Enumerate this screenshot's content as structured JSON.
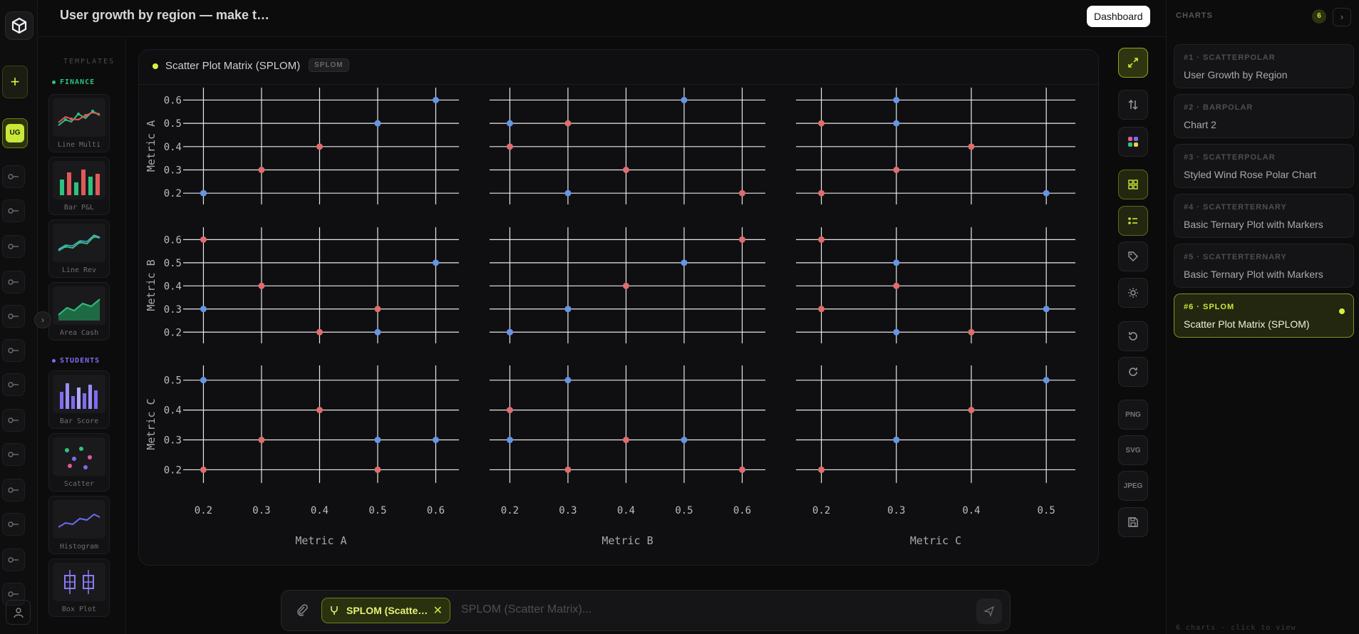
{
  "header": {
    "title": "User growth by region — make t…",
    "dashboard_label": "Dashboard"
  },
  "rail": {
    "add_label": "+",
    "active_badge": "UG",
    "expand_label": "›"
  },
  "templates": {
    "heading": "TEMPLATES",
    "sections": [
      {
        "title": "FINANCE",
        "color": "#2ec27e"
      },
      {
        "title": "STUDENTS",
        "color": "#7c6cf0"
      }
    ],
    "items": [
      {
        "label": "Line Multi",
        "icon": "line-multi-thumbnail"
      },
      {
        "label": "Bar P&L",
        "icon": "bar-pl-thumbnail"
      },
      {
        "label": "Line Rev",
        "icon": "line-rev-thumbnail"
      },
      {
        "label": "Area Cash",
        "icon": "area-cash-thumbnail"
      },
      {
        "label": "Bar Score",
        "icon": "bar-score-thumbnail"
      },
      {
        "label": "Scatter",
        "icon": "scatter-thumbnail"
      },
      {
        "label": "Histogram",
        "icon": "histogram-thumbnail"
      },
      {
        "label": "Box Plot",
        "icon": "box-plot-thumbnail"
      }
    ]
  },
  "canvas": {
    "title": "Scatter Plot Matrix (SPLOM)",
    "badge": "SPLOM"
  },
  "chart_data": {
    "type": "scatter",
    "title": "",
    "dimensions": [
      "Metric A",
      "Metric B",
      "Metric C"
    ],
    "colors": {
      "red": "#e06c6c",
      "blue": "#6495e6"
    },
    "ranges": {
      "Metric A": {
        "ticks": [
          0.2,
          0.3,
          0.4,
          0.5,
          0.6
        ],
        "range": [
          0.17,
          0.635
        ]
      },
      "Metric B": {
        "ticks": [
          0.2,
          0.3,
          0.4,
          0.5,
          0.6
        ],
        "range": [
          0.17,
          0.635
        ]
      },
      "Metric C": {
        "ticks": [
          0.2,
          0.3,
          0.4,
          0.5
        ],
        "range": [
          0.17,
          0.535
        ]
      }
    },
    "points": [
      {
        "A": 0.2,
        "B": 0.6,
        "C": 0.2,
        "group": "red"
      },
      {
        "A": 0.3,
        "B": 0.4,
        "C": 0.3,
        "group": "red"
      },
      {
        "A": 0.4,
        "B": 0.2,
        "C": 0.4,
        "group": "red"
      },
      {
        "A": 0.5,
        "B": 0.3,
        "C": 0.2,
        "group": "red"
      },
      {
        "A": 0.2,
        "B": 0.3,
        "C": 0.5,
        "group": "blue"
      },
      {
        "A": 0.6,
        "B": 0.5,
        "C": 0.3,
        "group": "blue"
      },
      {
        "A": 0.5,
        "B": 0.2,
        "C": 0.3,
        "group": "blue"
      }
    ],
    "grid": true,
    "legend": "none"
  },
  "toolbar": {
    "buttons": [
      {
        "name": "expand-icon",
        "label": ""
      },
      {
        "name": "swap-icon",
        "label": ""
      },
      {
        "name": "palette-icon",
        "label": ""
      },
      {
        "name": "grid-icon",
        "label": ""
      },
      {
        "name": "legend-icon",
        "label": ""
      },
      {
        "name": "tag-icon",
        "label": ""
      },
      {
        "name": "theme-icon",
        "label": ""
      },
      {
        "name": "undo-icon",
        "label": ""
      },
      {
        "name": "redo-icon",
        "label": ""
      },
      {
        "name": "export-png",
        "label": "PNG"
      },
      {
        "name": "export-svg",
        "label": "SVG"
      },
      {
        "name": "export-jpeg",
        "label": "JPEG"
      },
      {
        "name": "save-icon",
        "label": ""
      }
    ]
  },
  "charts_panel": {
    "heading": "CHARTS",
    "count": "6",
    "next": "›",
    "items": [
      {
        "meta": "#1 · SCATTERPOLAR",
        "name": "User Growth by Region"
      },
      {
        "meta": "#2 · BARPOLAR",
        "name": "Chart 2"
      },
      {
        "meta": "#3 · SCATTERPOLAR",
        "name": "Styled Wind Rose Polar Chart"
      },
      {
        "meta": "#4 · SCATTERTERNARY",
        "name": "Basic Ternary Plot with Markers"
      },
      {
        "meta": "#5 · SCATTERTERNARY",
        "name": "Basic Ternary Plot with Markers"
      },
      {
        "meta": "#6 · SPLOM",
        "name": "Scatter Plot Matrix (SPLOM)"
      }
    ],
    "footer": "6 charts · click to view"
  },
  "composer": {
    "chip_label": "SPLOM (Scatte…",
    "placeholder": "SPLOM (Scatter Matrix)..."
  }
}
